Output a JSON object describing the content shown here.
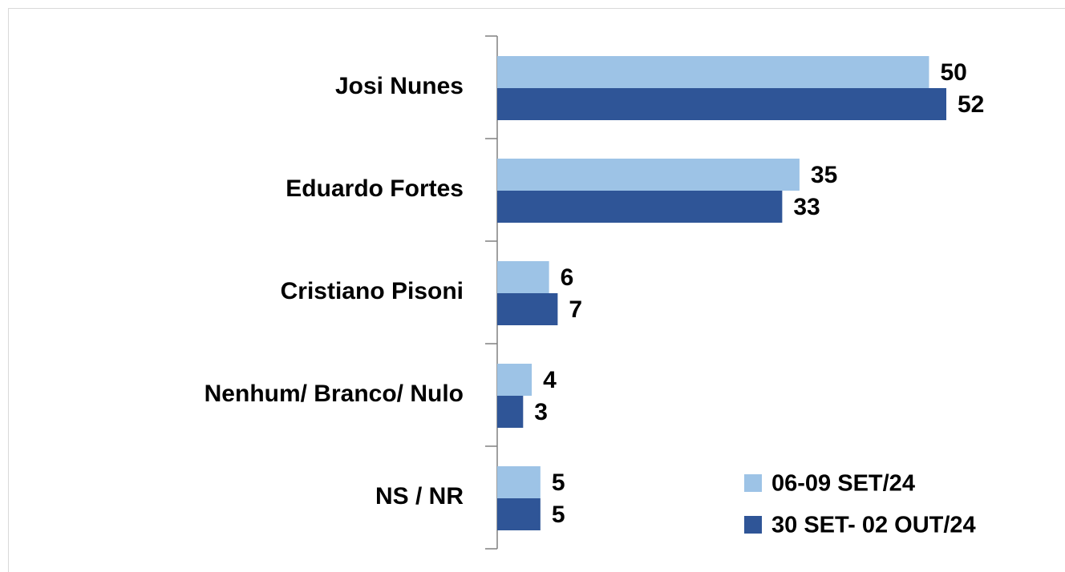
{
  "chart_data": {
    "type": "barh",
    "categories": [
      "Josi Nunes",
      "Eduardo Fortes",
      "Cristiano Pisoni",
      "Nenhum/ Branco/ Nulo",
      "NS / NR"
    ],
    "series": [
      {
        "name": "06-09 SET/24",
        "color": "#9dc3e6",
        "values": [
          50,
          35,
          6,
          4,
          5
        ]
      },
      {
        "name": "30 SET- 02 OUT/24",
        "color": "#2f5597",
        "values": [
          52,
          33,
          7,
          3,
          5
        ]
      }
    ],
    "legend": "lower right"
  }
}
